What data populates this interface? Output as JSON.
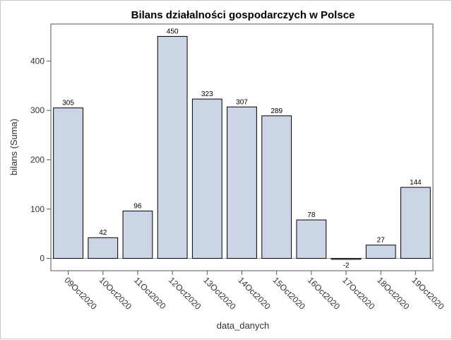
{
  "chart_data": {
    "type": "bar",
    "title": "Bilans działalności gospodarczych w Polsce",
    "xlabel": "data_danych",
    "ylabel": "bilans (Suma)",
    "categories": [
      "09Oct2020",
      "10Oct2020",
      "11Oct2020",
      "12Oct2020",
      "13Oct2020",
      "14Oct2020",
      "15Oct2020",
      "16Oct2020",
      "17Oct2020",
      "18Oct2020",
      "19Oct2020"
    ],
    "values": [
      305,
      42,
      96,
      450,
      323,
      307,
      289,
      78,
      -2,
      27,
      144
    ],
    "ylim": [
      -25,
      475
    ],
    "yticks": [
      0,
      100,
      200,
      300,
      400
    ],
    "bar_color": "#cbd5e5",
    "grid": false,
    "legend": "none"
  }
}
